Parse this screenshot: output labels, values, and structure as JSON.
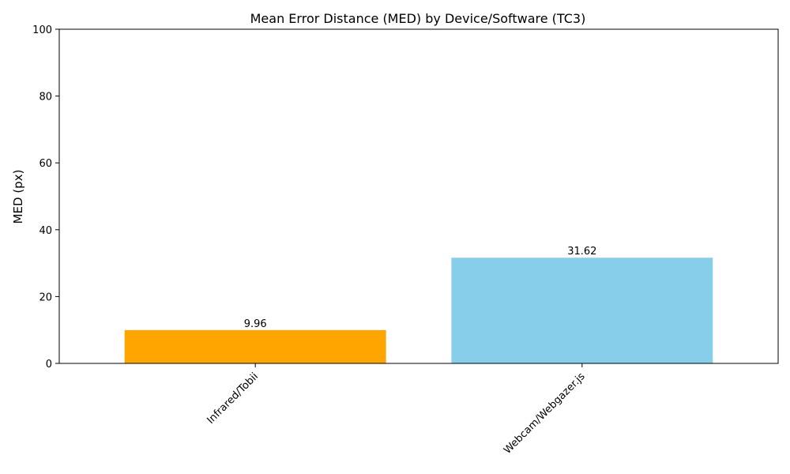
{
  "chart_data": {
    "type": "bar",
    "title": "Mean Error Distance (MED) by Device/Software (TC3)",
    "xlabel": "",
    "ylabel": "MED (px)",
    "categories": [
      "Infrared/Tobii",
      "Webcam/Webgazer.js"
    ],
    "values": [
      9.96,
      31.62
    ],
    "value_labels": [
      "9.96",
      "31.62"
    ],
    "colors": [
      "#ffa500",
      "#87ceeb"
    ],
    "ylim": [
      0,
      100
    ],
    "yticks": [
      0,
      20,
      40,
      60,
      80,
      100
    ],
    "ytick_labels": [
      "0",
      "20",
      "40",
      "60",
      "80",
      "100"
    ],
    "grid": false,
    "legend": "none"
  }
}
